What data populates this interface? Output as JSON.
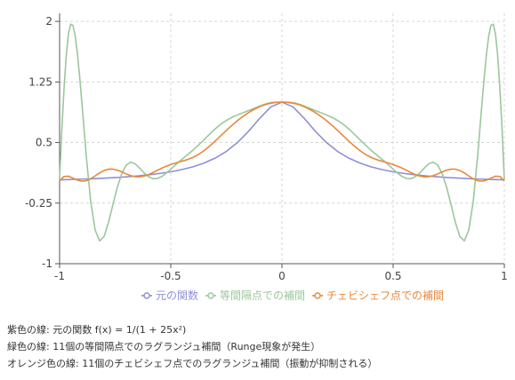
{
  "chart_data": {
    "type": "line",
    "title": "",
    "xlabel": "",
    "ylabel": "",
    "xlim": [
      -1,
      1
    ],
    "ylim": [
      -1,
      2.1
    ],
    "x_ticks": [
      "-1",
      "-0.5",
      "0",
      "0.5",
      "1"
    ],
    "y_ticks": [
      "-1",
      "-0.25",
      "0.5",
      "1.25",
      "2"
    ],
    "grid": "dashed",
    "legend_position": "bottom",
    "series": [
      {
        "name": "元の関数",
        "color": "#8f8fd6",
        "x": [
          -1.0,
          -0.95,
          -0.9,
          -0.85,
          -0.8,
          -0.75,
          -0.7,
          -0.65,
          -0.6,
          -0.55,
          -0.5,
          -0.45,
          -0.4,
          -0.35,
          -0.3,
          -0.25,
          -0.2,
          -0.15,
          -0.1,
          -0.05,
          0.0,
          0.05,
          0.1,
          0.15,
          0.2,
          0.25,
          0.3,
          0.35,
          0.4,
          0.45,
          0.5,
          0.55,
          0.6,
          0.65,
          0.7,
          0.75,
          0.8,
          0.85,
          0.9,
          0.95,
          1.0
        ],
        "values": [
          0.038,
          0.042,
          0.047,
          0.052,
          0.059,
          0.066,
          0.075,
          0.086,
          0.1,
          0.117,
          0.138,
          0.165,
          0.2,
          0.246,
          0.308,
          0.39,
          0.5,
          0.64,
          0.8,
          0.941,
          1.0,
          0.941,
          0.8,
          0.64,
          0.5,
          0.39,
          0.308,
          0.246,
          0.2,
          0.165,
          0.138,
          0.117,
          0.1,
          0.086,
          0.075,
          0.066,
          0.059,
          0.052,
          0.047,
          0.042,
          0.038
        ]
      },
      {
        "name": "等間隔点での補間",
        "color": "#9bc79b",
        "x": [
          -1.0,
          -0.99,
          -0.98,
          -0.97,
          -0.96,
          -0.95,
          -0.94,
          -0.93,
          -0.92,
          -0.91,
          -0.9,
          -0.88,
          -0.86,
          -0.84,
          -0.82,
          -0.8,
          -0.78,
          -0.76,
          -0.74,
          -0.72,
          -0.7,
          -0.68,
          -0.66,
          -0.64,
          -0.62,
          -0.6,
          -0.58,
          -0.56,
          -0.54,
          -0.52,
          -0.5,
          -0.48,
          -0.46,
          -0.44,
          -0.42,
          -0.4,
          -0.38,
          -0.36,
          -0.34,
          -0.32,
          -0.3,
          -0.28,
          -0.26,
          -0.24,
          -0.22,
          -0.2,
          -0.18,
          -0.16,
          -0.14,
          -0.12,
          -0.1,
          -0.08,
          -0.06,
          -0.04,
          -0.02,
          0.0,
          0.02,
          0.04,
          0.06,
          0.08,
          0.1,
          0.12,
          0.14,
          0.16,
          0.18,
          0.2,
          0.22,
          0.24,
          0.26,
          0.28,
          0.3,
          0.32,
          0.34,
          0.36,
          0.38,
          0.4,
          0.42,
          0.44,
          0.46,
          0.48,
          0.5,
          0.52,
          0.54,
          0.56,
          0.58,
          0.6,
          0.62,
          0.64,
          0.66,
          0.68,
          0.7,
          0.72,
          0.74,
          0.76,
          0.78,
          0.8,
          0.82,
          0.84,
          0.86,
          0.88,
          0.9,
          0.91,
          0.92,
          0.93,
          0.94,
          0.95,
          0.96,
          0.97,
          0.98,
          0.99,
          1.0
        ],
        "values": [
          0.038,
          0.656,
          1.171,
          1.581,
          1.849,
          1.966,
          1.951,
          1.823,
          1.605,
          1.323,
          1.0,
          0.331,
          -0.235,
          -0.585,
          -0.717,
          -0.663,
          -0.489,
          -0.265,
          -0.05,
          0.119,
          0.223,
          0.257,
          0.236,
          0.184,
          0.124,
          0.077,
          0.053,
          0.055,
          0.08,
          0.121,
          0.17,
          0.221,
          0.269,
          0.315,
          0.36,
          0.406,
          0.457,
          0.51,
          0.564,
          0.618,
          0.67,
          0.716,
          0.756,
          0.79,
          0.818,
          0.842,
          0.864,
          0.885,
          0.907,
          0.929,
          0.951,
          0.972,
          0.988,
          0.998,
          1.0,
          1.0,
          1.0,
          0.998,
          0.988,
          0.972,
          0.951,
          0.929,
          0.907,
          0.885,
          0.864,
          0.842,
          0.818,
          0.79,
          0.756,
          0.716,
          0.67,
          0.618,
          0.564,
          0.51,
          0.457,
          0.406,
          0.36,
          0.315,
          0.269,
          0.221,
          0.17,
          0.121,
          0.08,
          0.055,
          0.053,
          0.077,
          0.124,
          0.184,
          0.236,
          0.257,
          0.223,
          0.119,
          -0.05,
          -0.265,
          -0.489,
          -0.663,
          -0.717,
          -0.585,
          -0.235,
          0.331,
          1.0,
          1.323,
          1.605,
          1.823,
          1.951,
          1.966,
          1.849,
          1.581,
          1.171,
          0.656,
          0.038
        ]
      },
      {
        "name": "チェビシェフ点での補間",
        "color": "#e8883a",
        "x": [
          -1.0,
          -0.98,
          -0.96,
          -0.94,
          -0.92,
          -0.9,
          -0.88,
          -0.86,
          -0.84,
          -0.82,
          -0.8,
          -0.78,
          -0.76,
          -0.74,
          -0.72,
          -0.7,
          -0.68,
          -0.66,
          -0.64,
          -0.62,
          -0.6,
          -0.58,
          -0.56,
          -0.54,
          -0.52,
          -0.5,
          -0.48,
          -0.46,
          -0.44,
          -0.42,
          -0.4,
          -0.38,
          -0.36,
          -0.34,
          -0.32,
          -0.3,
          -0.28,
          -0.26,
          -0.24,
          -0.22,
          -0.2,
          -0.18,
          -0.16,
          -0.14,
          -0.12,
          -0.1,
          -0.08,
          -0.06,
          -0.04,
          -0.02,
          0.0,
          0.02,
          0.04,
          0.06,
          0.08,
          0.1,
          0.12,
          0.14,
          0.16,
          0.18,
          0.2,
          0.22,
          0.24,
          0.26,
          0.28,
          0.3,
          0.32,
          0.34,
          0.36,
          0.38,
          0.4,
          0.42,
          0.44,
          0.46,
          0.48,
          0.5,
          0.52,
          0.54,
          0.56,
          0.58,
          0.6,
          0.62,
          0.64,
          0.66,
          0.68,
          0.7,
          0.72,
          0.74,
          0.76,
          0.78,
          0.8,
          0.82,
          0.84,
          0.86,
          0.88,
          0.9,
          0.92,
          0.94,
          0.96,
          0.98,
          1.0
        ],
        "values": [
          0.025,
          0.08,
          0.083,
          0.06,
          0.035,
          0.022,
          0.027,
          0.051,
          0.087,
          0.125,
          0.154,
          0.17,
          0.171,
          0.158,
          0.136,
          0.111,
          0.09,
          0.077,
          0.075,
          0.084,
          0.103,
          0.128,
          0.156,
          0.183,
          0.207,
          0.228,
          0.245,
          0.261,
          0.276,
          0.294,
          0.317,
          0.346,
          0.381,
          0.422,
          0.469,
          0.519,
          0.571,
          0.624,
          0.676,
          0.725,
          0.771,
          0.814,
          0.853,
          0.888,
          0.918,
          0.944,
          0.965,
          0.981,
          0.992,
          0.998,
          1.0,
          0.998,
          0.992,
          0.981,
          0.965,
          0.944,
          0.918,
          0.888,
          0.853,
          0.814,
          0.771,
          0.725,
          0.676,
          0.624,
          0.571,
          0.519,
          0.469,
          0.422,
          0.381,
          0.346,
          0.317,
          0.294,
          0.276,
          0.261,
          0.245,
          0.228,
          0.207,
          0.183,
          0.156,
          0.128,
          0.103,
          0.084,
          0.075,
          0.077,
          0.09,
          0.111,
          0.136,
          0.158,
          0.171,
          0.17,
          0.154,
          0.125,
          0.087,
          0.051,
          0.027,
          0.022,
          0.035,
          0.06,
          0.083,
          0.08,
          0.025
        ]
      }
    ]
  },
  "captions": [
    "紫色の線: 元の関数 f(x) = 1/(1 + 25x²)",
    "緑色の線: 11個の等間隔点でのラグランジュ補間（Runge現象が発生）",
    "オレンジ色の線: 11個のチェビシェフ点でのラグランジュ補間（振動が抑制される）"
  ]
}
